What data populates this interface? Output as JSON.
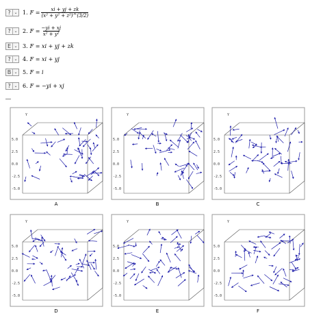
{
  "questions": [
    {
      "number": "1.",
      "select": "?",
      "lhs": "F =",
      "numerator": "xi + yj + zk",
      "denominator": "(x² + y² + z²)^(3/2)"
    },
    {
      "number": "2.",
      "select": "?",
      "lhs": "F =",
      "numerator": "−yi + xj",
      "denominator": "x² + y²"
    },
    {
      "number": "3.",
      "select": "E",
      "formula": "F = xi + yj + zk"
    },
    {
      "number": "4.",
      "select": "?",
      "formula": "F = xi + yj"
    },
    {
      "number": "5.",
      "select": "B",
      "formula": "F = i"
    },
    {
      "number": "6.",
      "select": "?",
      "formula": "F = −yi + xj"
    }
  ],
  "plots": [
    {
      "label": "A"
    },
    {
      "label": "B"
    },
    {
      "label": "C"
    },
    {
      "label": "D"
    },
    {
      "label": "E"
    },
    {
      "label": "F"
    }
  ],
  "axis": {
    "y_label": "Y",
    "ticks": [
      "5.0",
      "2.5",
      "0.0",
      "-2.5",
      "-5.0"
    ]
  }
}
